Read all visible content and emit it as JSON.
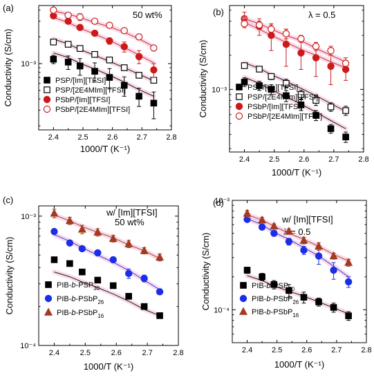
{
  "chart_data": [
    {
      "panel": "(a)",
      "type": "scatter",
      "annotation": [
        "50 wt%"
      ],
      "xlabel": "1000/T (K⁻¹)",
      "ylabel": "Conductivity (S/cm)",
      "xlim": [
        2.35,
        2.8
      ],
      "ylim": [
        0.00018,
        0.0045
      ],
      "yscale": "log",
      "xticks": [
        "2.4",
        "2.5",
        "2.6",
        "2.7",
        "2.8"
      ],
      "yticks": [
        {
          "value": 0.001,
          "label": "10⁻³"
        }
      ],
      "legend_position": "bottom-left",
      "x": [
        2.4,
        2.45,
        2.49,
        2.54,
        2.59,
        2.64,
        2.69,
        2.74
      ],
      "series": [
        {
          "name": "PSP/[Im][TFSI]",
          "marker": "square-filled",
          "color": "#000000",
          "values": [
            0.00112,
            0.00104,
            0.00094,
            0.00082,
            0.0007,
            0.00057,
            0.00043,
            0.00036
          ],
          "errors": [
            0.00012,
            0.00018,
            0.0002,
            0.0002,
            0.00018,
            0.00014,
            0.0001,
            0.00012
          ],
          "fit": [
            0.00132,
            0.00117,
            0.00101,
            0.00087,
            0.00074,
            0.00062,
            0.00051,
            0.00043
          ]
        },
        {
          "name": "PSP/[2E4MIm][TFSI]",
          "marker": "square-open",
          "color": "#000000",
          "values": [
            0.00175,
            0.00165,
            0.00148,
            0.00127,
            0.0011,
            0.0009,
            0.00074,
            0.00065
          ],
          "errors": [
            0,
            0,
            0,
            0,
            0,
            0,
            0,
            0
          ],
          "fit": [
            0.0019,
            0.00166,
            0.00144,
            0.00124,
            0.00106,
            0.0009,
            0.00076,
            0.00064
          ]
        },
        {
          "name": "PSbP/[Im][TFSI]",
          "marker": "circle-filled",
          "color": "#cc1a1a",
          "values": [
            0.00345,
            0.003,
            0.00255,
            0.0022,
            0.0018,
            0.00155,
            0.0012,
            0.00085
          ],
          "errors": [
            0.0002,
            0.0002,
            0.00015,
            0.00015,
            0.00015,
            0.0002,
            0.0002,
            0.00015
          ],
          "fit": [
            0.0033,
            0.0029,
            0.0025,
            0.00215,
            0.00182,
            0.00152,
            0.00125,
            0.00102
          ]
        },
        {
          "name": "PSbP/[2E4MIm][TFSI]",
          "marker": "circle-open",
          "color": "#cc1a1a",
          "values": [
            0.004,
            0.0035,
            0.00335,
            0.003,
            0.0027,
            0.00235,
            0.002,
            0.0015
          ],
          "errors": [
            0,
            0,
            0.0003,
            0.0002,
            0,
            0,
            0,
            0
          ],
          "fit": [
            0.0039,
            0.0036,
            0.0033,
            0.0029,
            0.0026,
            0.00225,
            0.0019,
            0.00155
          ]
        }
      ]
    },
    {
      "panel": "(b)",
      "type": "scatter",
      "annotation": [
        "λ = 0.5"
      ],
      "xlabel": "1000/T (K⁻¹)",
      "ylabel": "Conductivity (S/cm)",
      "xlim": [
        2.35,
        2.8
      ],
      "ylim": [
        0.00028,
        0.0055
      ],
      "yscale": "log",
      "xticks": [
        "2.4",
        "2.5",
        "2.6",
        "2.7",
        "2.8"
      ],
      "yticks": [
        {
          "value": 0.001,
          "label": "10⁻³"
        }
      ],
      "legend_position": "bottom-left",
      "x": [
        2.4,
        2.45,
        2.49,
        2.54,
        2.59,
        2.64,
        2.69,
        2.74
      ],
      "series": [
        {
          "name": "PSP/[Im][TFSI]",
          "marker": "square-filled",
          "color": "#000000",
          "values": [
            0.00116,
            0.00108,
            0.001,
            0.00088,
            0.00073,
            0.00059,
            0.00045,
            0.00038
          ],
          "errors": [
            0.0001,
            0.0001,
            0.0001,
            0.0001,
            8e-05,
            6e-05,
            4e-05,
            4e-05
          ],
          "fit": [
            0.00128,
            0.00113,
            0.00099,
            0.00086,
            0.00074,
            0.00063,
            0.00053,
            0.00045
          ]
        },
        {
          "name": "PSP/[2E4MIm][TFSI]",
          "marker": "square-open",
          "color": "#000000",
          "values": [
            0.00162,
            0.00151,
            0.0013,
            0.00113,
            0.0009,
            0.0008,
            0.0007,
            0.00065
          ],
          "errors": [
            8e-05,
            8e-05,
            8e-05,
            0.0001,
            8e-05,
            8e-05,
            6e-05,
            6e-05
          ],
          "fit": [
            0.00172,
            0.00153,
            0.00135,
            0.00118,
            0.00102,
            0.00088,
            0.00075,
            0.00064
          ]
        },
        {
          "name": "PSbP/[Im][TFSI]",
          "marker": "circle-filled",
          "color": "#cc1a1a",
          "values": [
            0.0042,
            0.0036,
            0.003,
            0.0025,
            0.0021,
            0.0019,
            0.0016,
            0.0015
          ],
          "errors": [
            0.0006,
            0.0006,
            0.0008,
            0.0009,
            0.0006,
            0.0006,
            0.0005,
            0.0003
          ],
          "fit": [
            0.0039,
            0.0034,
            0.003,
            0.0026,
            0.00225,
            0.002,
            0.00175,
            0.00155
          ]
        },
        {
          "name": "PSbP/[2E4MIm][TFSI]",
          "marker": "circle-open",
          "color": "#cc1a1a",
          "values": [
            0.0038,
            0.0037,
            0.0034,
            0.0031,
            0.0028,
            0.0024,
            0.0022,
            0.0017
          ],
          "errors": [
            0.0003,
            0.0003,
            0.0003,
            0.0003,
            0.0002,
            0.0002,
            0.0002,
            0.0002
          ],
          "fit": [
            0.0042,
            0.0038,
            0.0034,
            0.003,
            0.0027,
            0.0023,
            0.002,
            0.00175
          ]
        }
      ]
    },
    {
      "panel": "(c)",
      "type": "scatter",
      "annotation": [
        "w/ [Im][TFSI]",
        "50 wt%"
      ],
      "xlabel": "1000/T (K⁻¹)",
      "ylabel": "Conductivity (S/cm)",
      "xlim": [
        2.35,
        2.8
      ],
      "ylim": [
        0.0001,
        0.0012
      ],
      "yscale": "log",
      "xticks": [
        "2.4",
        "2.5",
        "2.6",
        "2.7",
        "2.8"
      ],
      "yticks": [
        {
          "value": 0.001,
          "label": "10⁻³"
        },
        {
          "value": 0.0001,
          "label": "10⁻⁴"
        }
      ],
      "legend_position": "bottom-left",
      "x": [
        2.4,
        2.45,
        2.49,
        2.54,
        2.59,
        2.64,
        2.69,
        2.74
      ],
      "series": [
        {
          "name": "PIB-b-PSP",
          "subscript": "30",
          "marker": "square-filled",
          "color": "#000000",
          "values": [
            0.00046,
            0.00043,
            0.00037,
            0.00032,
            0.00029,
            0.00024,
            0.0002,
            0.00017
          ],
          "errors": [
            0,
            0,
            0,
            0,
            0,
            0,
            0,
            0
          ],
          "fit": [
            0.00037,
            0.00034,
            0.00031,
            0.00028,
            0.00025,
            0.00022,
            0.00019,
            0.00017
          ]
        },
        {
          "name": "PIB-b-PSbP",
          "subscript": "26",
          "marker": "circle-filled",
          "color": "#1a2ee6",
          "values": [
            0.00076,
            0.00062,
            0.00056,
            0.00052,
            0.00046,
            0.00036,
            0.00033,
            0.00026
          ],
          "errors": [
            0,
            0,
            0,
            0,
            0,
            3e-05,
            2e-05,
            0
          ],
          "fit": [
            0.00072,
            0.00064,
            0.00057,
            0.0005,
            0.00044,
            0.00038,
            0.00032,
            0.00027
          ]
        },
        {
          "name": "PIB-b-PSbP",
          "subscript": "16",
          "marker": "triangle-filled",
          "color": "#a33a22",
          "values": [
            0.00105,
            0.00092,
            0.00079,
            0.00075,
            0.00067,
            0.00061,
            0.00054,
            0.00048
          ],
          "errors": [
            8e-05,
            6e-05,
            6e-05,
            5e-05,
            4e-05,
            4e-05,
            3e-05,
            3e-05
          ],
          "fit": [
            0.00102,
            0.00092,
            0.00083,
            0.00075,
            0.00068,
            0.0006,
            0.00054,
            0.00047
          ]
        }
      ]
    },
    {
      "panel": "(d)",
      "type": "scatter",
      "annotation": [
        "w/ [Im][TFSI]",
        "λ = 0.5"
      ],
      "xlabel": "1000/T (K⁻¹)",
      "ylabel": "Conductivity (S/cm)",
      "xlim": [
        2.35,
        2.8
      ],
      "ylim": [
        5e-05,
        0.001
      ],
      "yscale": "log",
      "xticks": [
        "2.4",
        "2.5",
        "2.6",
        "2.7",
        "2.8"
      ],
      "yticks": [
        {
          "value": 0.001,
          "label": "10⁻³"
        },
        {
          "value": 0.0001,
          "label": "10⁻⁴"
        }
      ],
      "legend_position": "bottom-left",
      "x": [
        2.4,
        2.45,
        2.49,
        2.54,
        2.59,
        2.64,
        2.69,
        2.74
      ],
      "series": [
        {
          "name": "PIB-b-PSP",
          "subscript": "30",
          "marker": "square-filled",
          "color": "#000000",
          "values": [
            0.00023,
            0.0002,
            0.00017,
            0.00015,
            0.00013,
            0.000118,
            0.000105,
            8.8e-05
          ],
          "errors": [
            1.5e-05,
            1.5e-05,
            1.5e-05,
            2e-05,
            1.5e-05,
            1e-05,
            1e-05,
            8e-06
          ],
          "fit": [
            0.000205,
            0.000185,
            0.000165,
            0.000148,
            0.000133,
            0.000118,
            0.000104,
            9.2e-05
          ]
        },
        {
          "name": "PIB-b-PSbP",
          "subscript": "26",
          "marker": "circle-filled",
          "color": "#1a2ee6",
          "values": [
            0.00067,
            0.00057,
            0.0005,
            0.00042,
            0.00035,
            0.00031,
            0.00023,
            0.00018
          ],
          "errors": [
            3e-05,
            3e-05,
            3e-05,
            3e-05,
            3e-05,
            5e-05,
            4e-05,
            2e-05
          ],
          "fit": [
            0.00068,
            0.0006,
            0.00051,
            0.00044,
            0.00037,
            0.00031,
            0.00025,
            0.0002
          ]
        },
        {
          "name": "PIB-b-PSbP",
          "subscript": "16",
          "marker": "triangle-filled",
          "color": "#a33a22",
          "values": [
            0.00076,
            0.00066,
            0.00058,
            0.00052,
            0.00043,
            0.00038,
            0.00031,
            0.00027
          ],
          "errors": [
            5e-05,
            4e-05,
            3e-05,
            3e-05,
            3e-05,
            3e-05,
            2e-05,
            2e-05
          ],
          "fit": [
            0.00074,
            0.00066,
            0.00058,
            0.0005,
            0.00044,
            0.00038,
            0.00032,
            0.00028
          ]
        }
      ]
    }
  ]
}
